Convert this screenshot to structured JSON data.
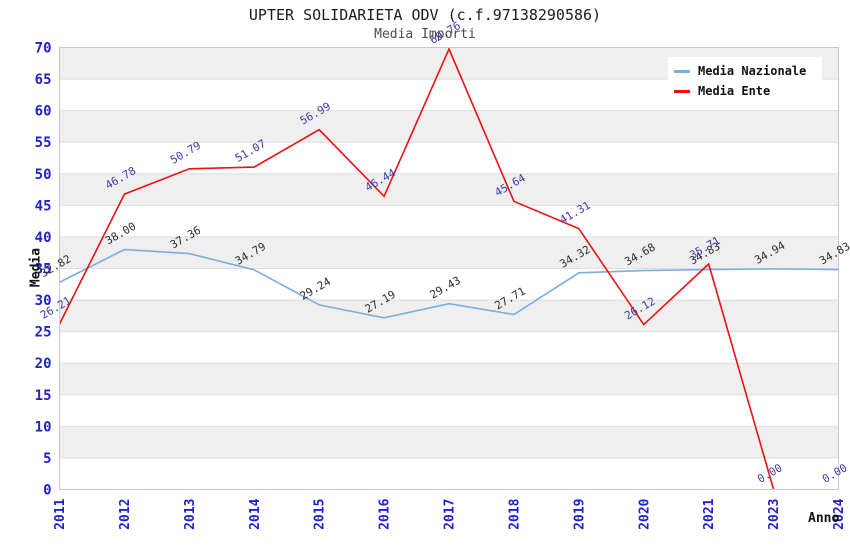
{
  "chart_data": {
    "type": "line",
    "title": "UPTER SOLIDARIETA ODV (c.f.97138290586)",
    "subtitle": "Media Importi",
    "xlabel": "Anno",
    "ylabel": "Media",
    "ylim": [
      0,
      70
    ],
    "ytick_step": 5,
    "decimals": 2,
    "grid": "horizontal-bands",
    "legend_position": "top-right",
    "categories": [
      "2011",
      "2012",
      "2013",
      "2014",
      "2015",
      "2016",
      "2017",
      "2018",
      "2019",
      "2020",
      "2021",
      "2023",
      "2024"
    ],
    "series": [
      {
        "name": "Media Nazionale",
        "color": "#79aede",
        "label_color": "#2e2e2e",
        "values": [
          32.82,
          38.0,
          37.36,
          34.79,
          29.24,
          27.19,
          29.43,
          27.71,
          34.32,
          34.68,
          34.83,
          34.94,
          34.83
        ]
      },
      {
        "name": "Media Ente",
        "color": "#ee1111",
        "label_color": "#3c3cab",
        "values": [
          26.21,
          46.78,
          50.79,
          51.07,
          56.99,
          46.44,
          69.76,
          45.64,
          41.31,
          26.12,
          35.71,
          0.0,
          0.0
        ],
        "line_end_index": 11
      }
    ],
    "colors": {
      "band": "#efefef",
      "grid": "#dedede",
      "border": "#c9c9c9",
      "tick": "#2121cd"
    }
  }
}
